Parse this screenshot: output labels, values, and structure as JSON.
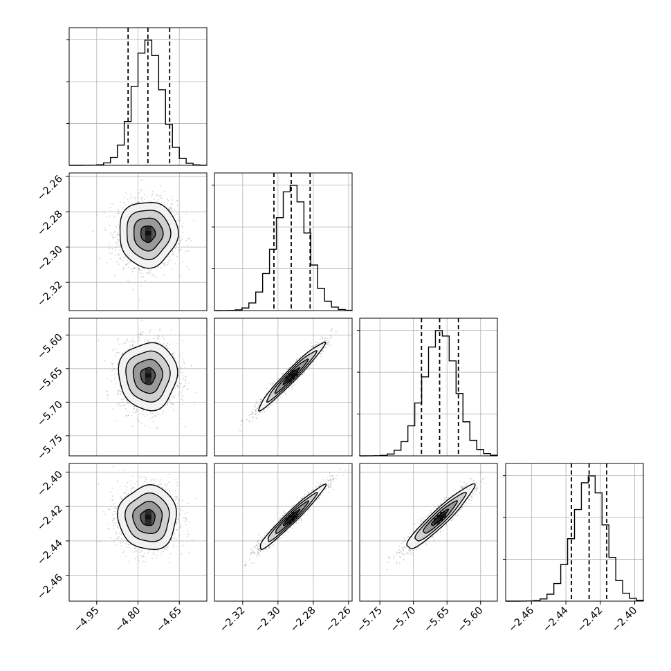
{
  "chart_data": {
    "type": "corner",
    "parameters": [
      {
        "label": "",
        "range": [
          -5.05,
          -4.55
        ],
        "ticks": [
          "−4.95",
          "−4.80",
          "−4.65"
        ],
        "tick_values": [
          -4.95,
          -4.8,
          -4.65
        ],
        "quantiles": [
          -4.836,
          -4.764,
          -4.685
        ],
        "median": -4.764,
        "sigma": 0.053
      },
      {
        "label": "",
        "range": [
          -2.336,
          -2.258
        ],
        "ticks": [
          "−2.32",
          "−2.30",
          "−2.28",
          "−2.26"
        ],
        "tick_values": [
          -2.32,
          -2.3,
          -2.28,
          -2.26
        ],
        "quantiles": [
          -2.3023,
          -2.2925,
          -2.2818
        ],
        "median": -2.2925,
        "sigma": 0.0093
      },
      {
        "label": "",
        "range": [
          -5.78,
          -5.575
        ],
        "ticks": [
          "−5.75",
          "−5.70",
          "−5.65",
          "−5.60"
        ],
        "tick_values": [
          -5.75,
          -5.7,
          -5.65,
          -5.6
        ],
        "quantiles": [
          -5.688,
          -5.661,
          -5.633
        ],
        "median": -5.661,
        "sigma": 0.025
      },
      {
        "label": "",
        "range": [
          -2.475,
          -2.395
        ],
        "ticks": [
          "−2.46",
          "−2.44",
          "−2.42",
          "−2.40"
        ],
        "tick_values": [
          -2.46,
          -2.44,
          -2.42,
          -2.4
        ],
        "quantiles": [
          -2.4368,
          -2.4265,
          -2.4163
        ],
        "median": -2.4265,
        "sigma": 0.0093
      }
    ],
    "correlations": [
      {
        "pair": [
          0,
          1
        ],
        "rho": 0.0
      },
      {
        "pair": [
          0,
          2
        ],
        "rho": 0.0
      },
      {
        "pair": [
          0,
          3
        ],
        "rho": 0.0
      },
      {
        "pair": [
          1,
          2
        ],
        "rho": 0.97
      },
      {
        "pair": [
          1,
          3
        ],
        "rho": 0.97
      },
      {
        "pair": [
          2,
          3
        ],
        "rho": 0.94
      }
    ],
    "histogram_bins": 20,
    "contour_levels_sigma": [
      0.5,
      1.0,
      1.5,
      2.0
    ],
    "quantile_lines": "dashed",
    "grid": true,
    "colors": {
      "line": "#000000",
      "grid": "#b0b0b0",
      "points": "#7a7a7a",
      "background": "#ffffff"
    }
  }
}
